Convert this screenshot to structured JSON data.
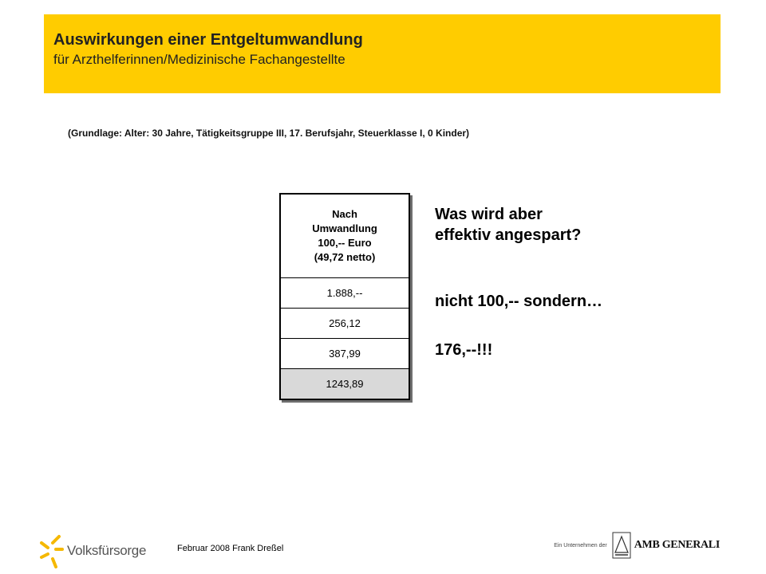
{
  "header": {
    "title": "Auswirkungen einer Entgeltumwandlung",
    "subtitle": "für Arzthelferinnen/Medizinische  Fachangestellte",
    "background": "#ffcc00"
  },
  "basis": "(Grundlage: Alter:  30 Jahre, Tätigkeitsgruppe III, 17. Berufsjahr, Steuerklasse I, 0 Kinder)",
  "table": {
    "header_lines": [
      "Nach",
      "Umwandlung",
      "100,-- Euro",
      "(49,72 netto)"
    ],
    "rows": [
      "1.888,--",
      "256,12",
      "387,99",
      "1243,89"
    ]
  },
  "message": {
    "question_line1": "Was wird aber",
    "question_line2": "effektiv angespart?",
    "answer_line": "nicht 100,-- sondern…",
    "result": "176,--!!!"
  },
  "footer": {
    "text": "Februar 2008 Frank Dreßel",
    "logo_left": "Volksfürsorge",
    "logo_right_small": "Ein Unternehmen der",
    "logo_right": "AMB GENERALI"
  }
}
